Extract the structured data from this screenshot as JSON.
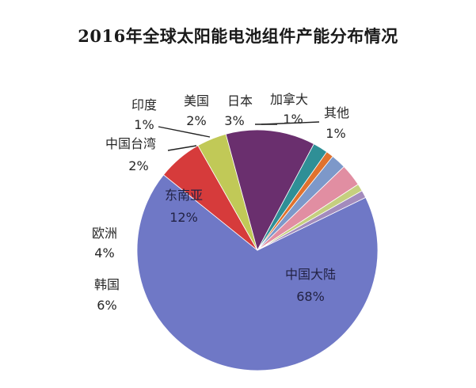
{
  "chart_data": {
    "type": "pie",
    "title": "2016年全球太阳能电池组件产能分布情况",
    "slices": [
      {
        "label": "中国大陆",
        "value": 68,
        "pct_label": "68%",
        "color": "#6f78c6"
      },
      {
        "label": "韩国",
        "value": 6,
        "pct_label": "6%",
        "color": "#d63b3b"
      },
      {
        "label": "欧洲",
        "value": 4,
        "pct_label": "4%",
        "color": "#c1c957"
      },
      {
        "label": "东南亚",
        "value": 12,
        "pct_label": "12%",
        "color": "#6a2f6e"
      },
      {
        "label": "中国台湾",
        "value": 2,
        "pct_label": "2%",
        "color": "#2f8f96"
      },
      {
        "label": "印度",
        "value": 1,
        "pct_label": "1%",
        "color": "#e0722e"
      },
      {
        "label": "美国",
        "value": 2,
        "pct_label": "2%",
        "color": "#7d98c9"
      },
      {
        "label": "日本",
        "value": 3,
        "pct_label": "3%",
        "color": "#e18ea2"
      },
      {
        "label": "加拿大",
        "value": 1,
        "pct_label": "1%",
        "color": "#c5cf7f"
      },
      {
        "label": "其他",
        "value": 1,
        "pct_label": "1%",
        "color": "#a38bbd"
      }
    ]
  }
}
